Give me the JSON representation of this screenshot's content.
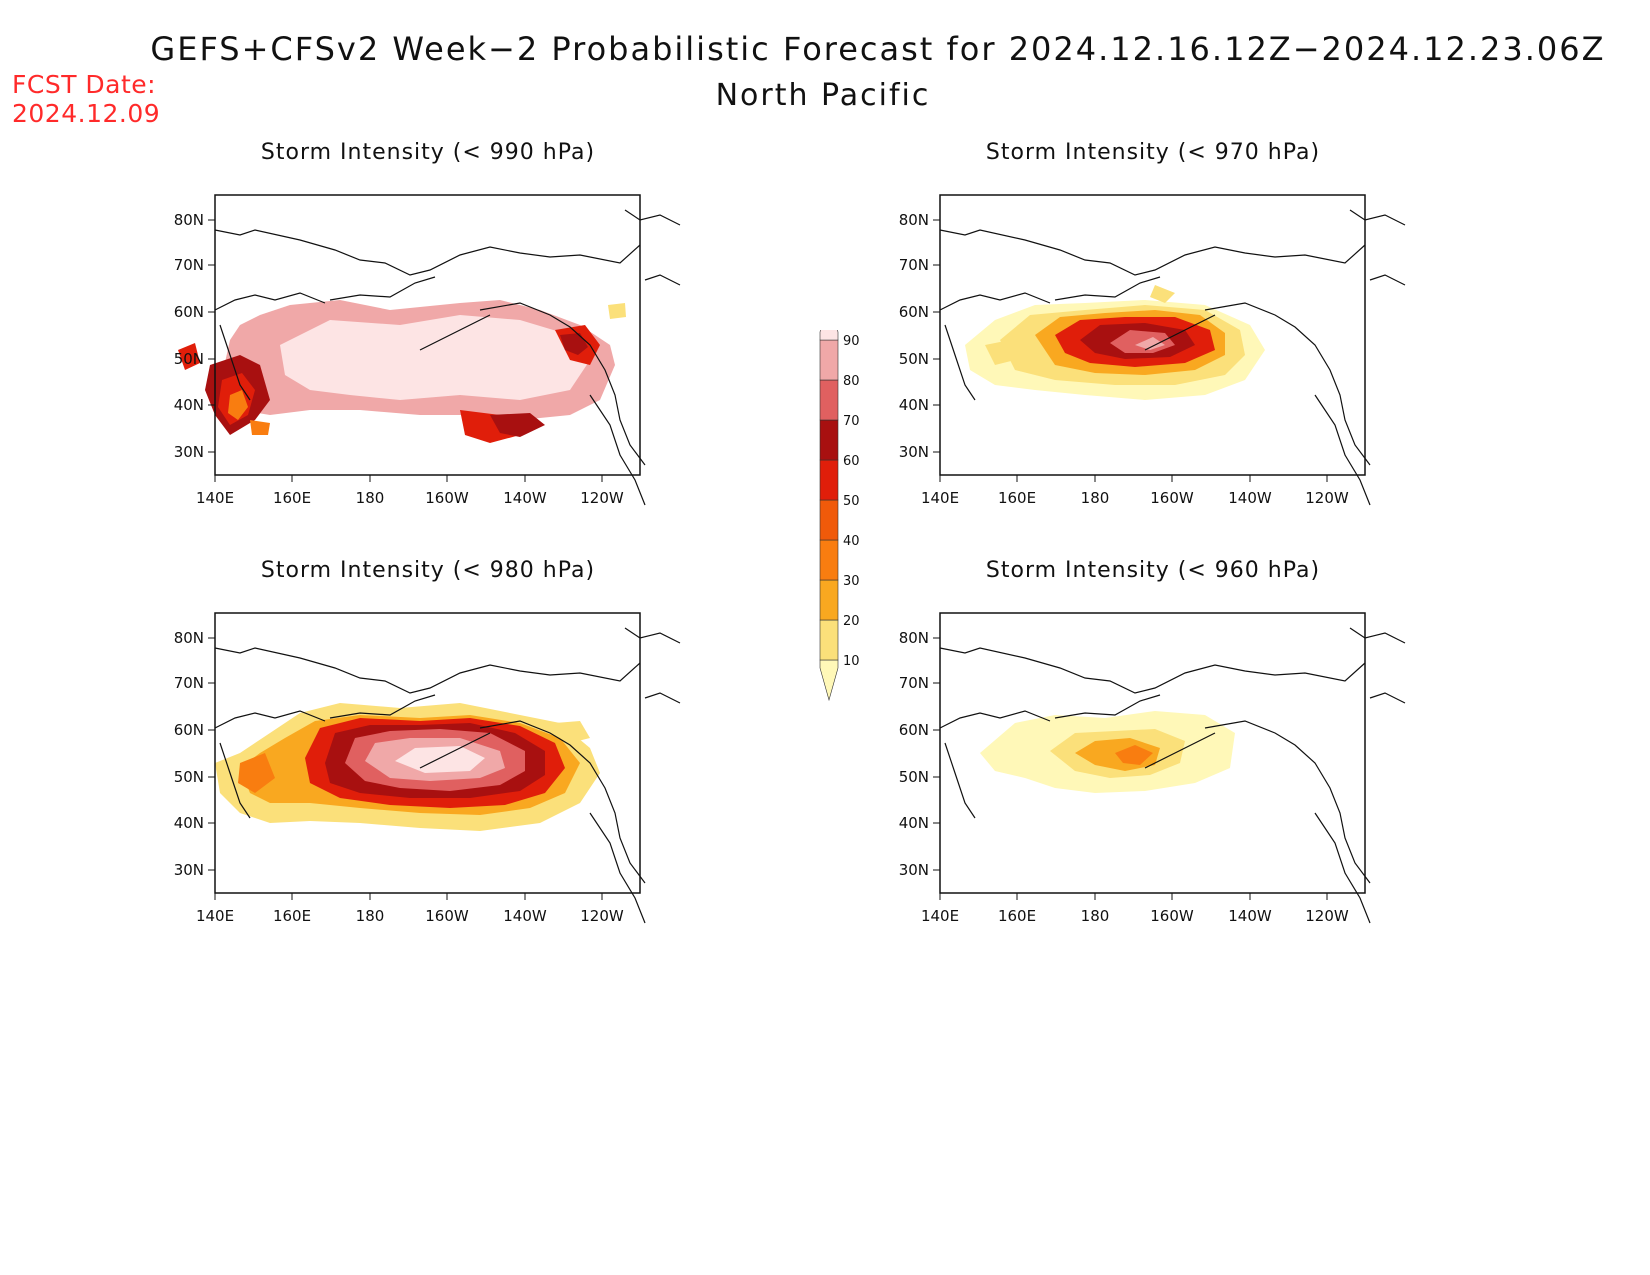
{
  "header": {
    "title": "GEFS+CFSv2 Week−2 Probabilistic Forecast for 2024.12.16.12Z−2024.12.23.06Z",
    "subtitle": "North Pacific",
    "fcst_label": "FCST Date:",
    "fcst_date": "2024.12.09"
  },
  "axes": {
    "lat_ticks": [
      "80N",
      "70N",
      "60N",
      "50N",
      "40N",
      "30N"
    ],
    "lon_ticks": [
      "140E",
      "160E",
      "180",
      "160W",
      "140W",
      "120W"
    ]
  },
  "colorbar": {
    "levels": [
      "10",
      "20",
      "30",
      "40",
      "50",
      "60",
      "70",
      "80",
      "90"
    ],
    "colors": [
      "#fff8b8",
      "#fbe07a",
      "#f9a820",
      "#f97d10",
      "#f05a0a",
      "#e01e0a",
      "#a81010",
      "#e06060",
      "#f0a8a8",
      "#fde4e4"
    ]
  },
  "panels": [
    {
      "id": "p990",
      "title": "Storm Intensity (< 990 hPa)"
    },
    {
      "id": "p970",
      "title": "Storm Intensity (< 970 hPa)"
    },
    {
      "id": "p980",
      "title": "Storm Intensity (< 980 hPa)"
    },
    {
      "id": "p960",
      "title": "Storm Intensity (< 960 hPa)"
    }
  ]
}
